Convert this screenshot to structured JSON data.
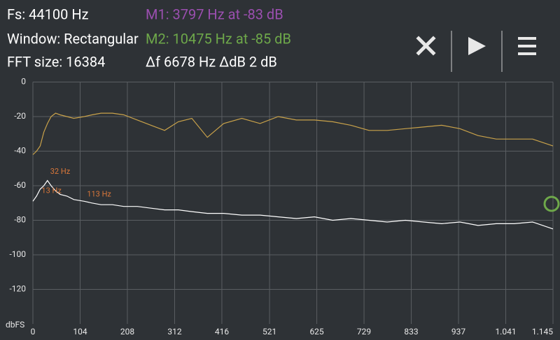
{
  "header": {
    "sample_rate": "Fs: 44100 Hz",
    "window": "Window: Rectangular",
    "fft_size": "FFT size: 16384",
    "marker1": "M1: 3797 Hz at -83 dB",
    "marker2": "M2: 10475 Hz at -85 dB",
    "delta": "Δf 6678 Hz ΔdB 2 dB",
    "marker1_color": "#9b4fb0",
    "marker2_color": "#6ea84a"
  },
  "chart_data": {
    "type": "line",
    "y_label": "dbFS",
    "x": [
      0,
      8,
      16,
      24,
      32,
      40,
      50,
      60,
      75,
      90,
      113,
      130,
      150,
      175,
      200,
      230,
      260,
      290,
      320,
      350,
      384,
      420,
      460,
      500,
      540,
      580,
      620,
      660,
      700,
      740,
      780,
      820,
      860,
      900,
      940,
      980,
      1020,
      1060,
      1100,
      1145
    ],
    "series": [
      {
        "color": "#c9a24a",
        "values": [
          -42,
          -40,
          -37,
          -29,
          -24,
          -20,
          -18,
          -19,
          -20,
          -21,
          -20,
          -19,
          -18,
          -18,
          -19,
          -22,
          -25,
          -28,
          -23,
          -21,
          -32,
          -24,
          -21,
          -24,
          -20,
          -22,
          -22,
          -23,
          -25,
          -28,
          -28,
          -27,
          -26,
          -25,
          -27,
          -31,
          -33,
          -33,
          -33,
          -37
        ]
      },
      {
        "color": "#ffffff",
        "values": [
          -69,
          -66,
          -62,
          -60,
          -57,
          -60,
          -63,
          -65,
          -66,
          -68,
          -69,
          -70,
          -71,
          -71,
          -72,
          -72,
          -73,
          -74,
          -74,
          -75,
          -76,
          -76,
          -77,
          -77,
          -78,
          -79,
          -78,
          -80,
          -79,
          -80,
          -81,
          -80,
          -81,
          -82,
          -81,
          -83,
          -82,
          -82,
          -81,
          -85
        ]
      }
    ],
    "annotations": [
      {
        "text": "32 Hz",
        "x": 32,
        "y": -52
      },
      {
        "text": "13 Hz",
        "x": 13,
        "y": -63
      },
      {
        "text": "113 Hz",
        "x": 113,
        "y": -65
      }
    ],
    "xlim": [
      0,
      1145
    ],
    "ylim": [
      -140,
      0
    ],
    "xticks": [
      0,
      104,
      208,
      312,
      416,
      521,
      625,
      729,
      833,
      937,
      {
        "value": 1041,
        "label": "1.041"
      },
      {
        "value": 1145,
        "label": "1.145"
      }
    ],
    "yticks": [
      0,
      -20,
      -40,
      -60,
      -80,
      -100,
      -120
    ],
    "grid": true
  }
}
